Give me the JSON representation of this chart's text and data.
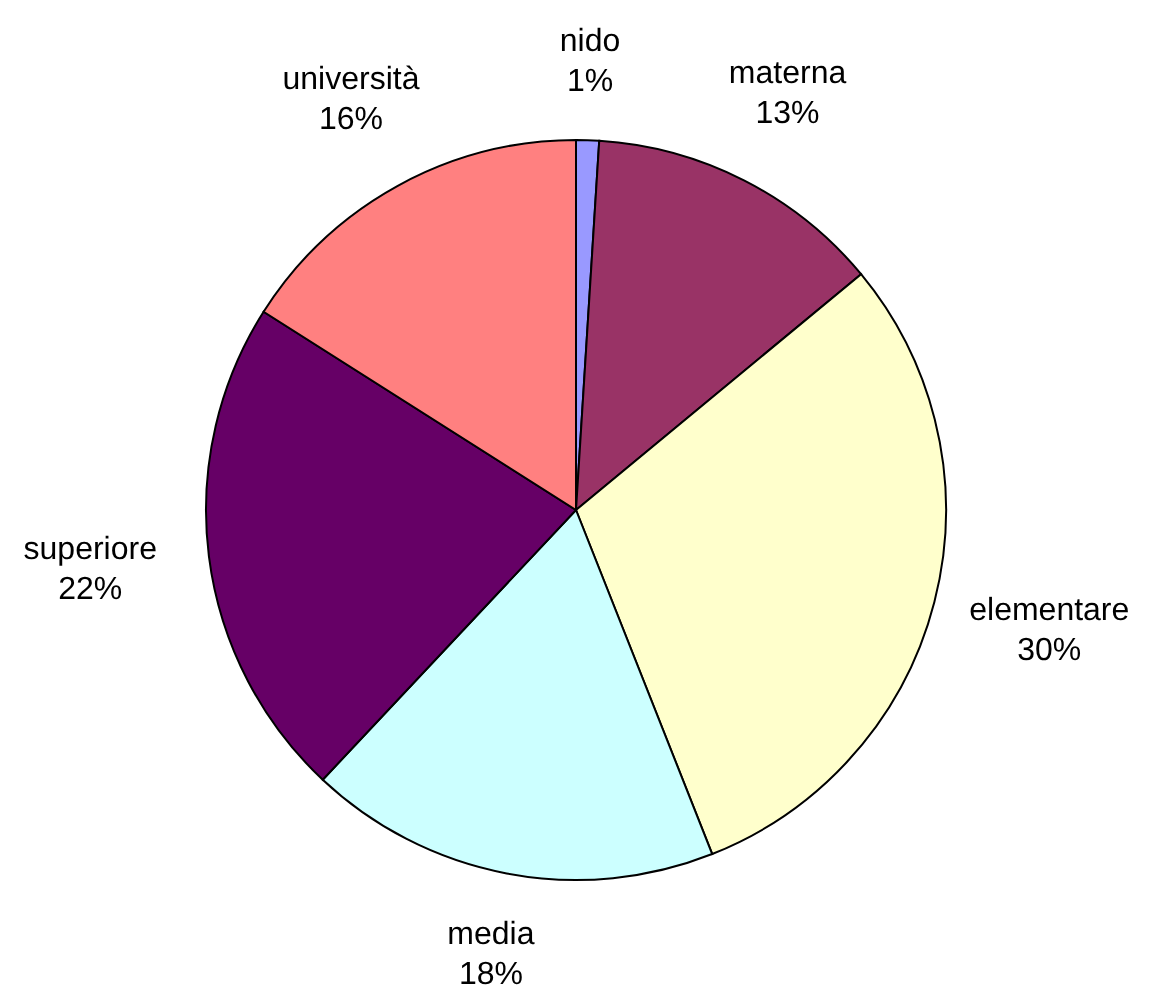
{
  "chart_data": {
    "type": "pie",
    "categories": [
      "nido",
      "materna",
      "elementare",
      "media",
      "superiore",
      "università"
    ],
    "values": [
      1,
      13,
      30,
      18,
      22,
      16
    ],
    "value_labels": [
      "1%",
      "13%",
      "30%",
      "18%",
      "22%",
      "16%"
    ],
    "colors": [
      "#9999ff",
      "#993366",
      "#ffffcc",
      "#ccffff",
      "#660066",
      "#ff8080"
    ]
  }
}
